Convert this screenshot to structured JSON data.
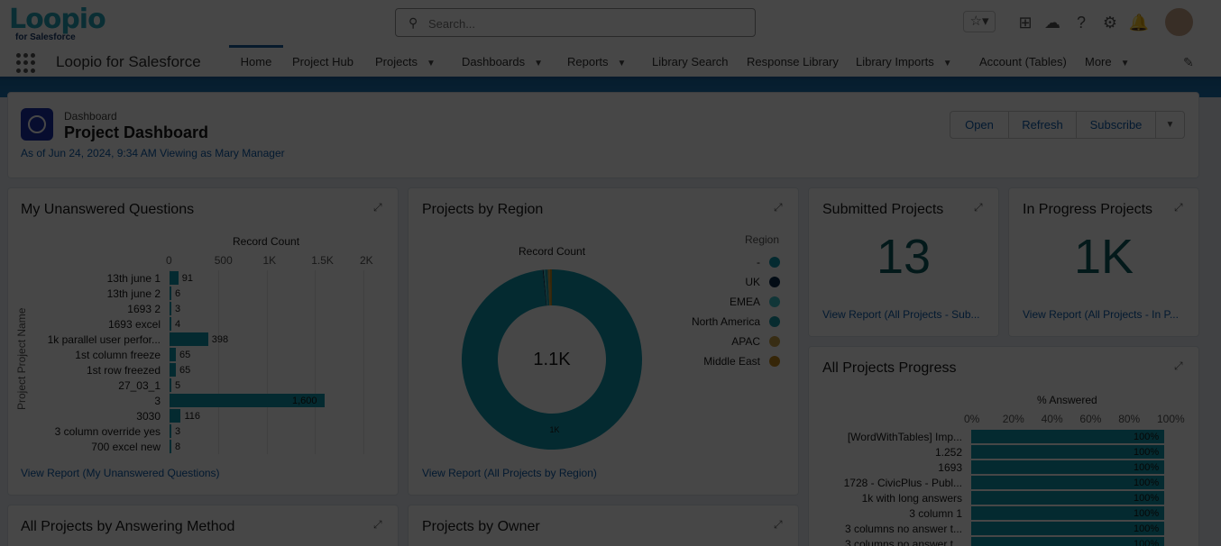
{
  "header": {
    "logo": "Loopio",
    "logo_sub": "for Salesforce",
    "search_placeholder": "Search..."
  },
  "nav": {
    "app_name": "Loopio for Salesforce",
    "items": [
      {
        "label": "Home"
      },
      {
        "label": "Project Hub"
      },
      {
        "label": "Projects"
      },
      {
        "label": "Dashboards"
      },
      {
        "label": "Reports"
      },
      {
        "label": "Library Search"
      },
      {
        "label": "Response Library"
      },
      {
        "label": "Library Imports"
      },
      {
        "label": "Account (Tables)"
      },
      {
        "label": "More"
      }
    ]
  },
  "dashboard": {
    "type": "Dashboard",
    "title": "Project Dashboard",
    "subtitle": "As of Jun 24, 2024, 9:34 AM Viewing as Mary Manager",
    "buttons": {
      "open": "Open",
      "refresh": "Refresh",
      "subscribe": "Subscribe"
    }
  },
  "widgets": {
    "unanswered": {
      "title": "My Unanswered Questions",
      "axis_title": "Record Count",
      "y_title": "Project  Project Name",
      "link": "View Report (My Unanswered Questions)"
    },
    "region": {
      "title": "Projects by Region",
      "chart_title": "Record Count",
      "center": "1.1K",
      "slice_label": "1K",
      "legend_title": "Region",
      "link": "View Report (All Projects by Region)"
    },
    "submitted": {
      "title": "Submitted Projects",
      "value": "13",
      "link": "View Report (All Projects - Sub..."
    },
    "inprogress": {
      "title": "In Progress Projects",
      "value": "1K",
      "link": "View Report (All Projects - In P..."
    },
    "progress": {
      "title": "All Projects Progress",
      "axis_title": "% Answered"
    },
    "answering": {
      "title": "All Projects by Answering Method"
    },
    "owner": {
      "title": "Projects by Owner"
    }
  },
  "chart_data": [
    {
      "type": "bar",
      "title": "My Unanswered Questions",
      "xlabel": "Record Count",
      "ylabel": "Project  Project Name",
      "xlim": [
        0,
        2000
      ],
      "ticks": [
        "0",
        "500",
        "1K",
        "1.5K",
        "2K"
      ],
      "categories": [
        "13th june 1",
        "13th june 2",
        "1693 2",
        "1693 excel",
        "1k parallel user perfor...",
        "1st column freeze",
        "1st row freezed",
        "27_03_1",
        "3",
        "3030",
        "3 column override yes",
        "700 excel new"
      ],
      "values": [
        91,
        6,
        3,
        4,
        398,
        65,
        65,
        5,
        1600,
        116,
        3,
        8
      ],
      "labels": [
        "91",
        "6",
        "3",
        "4",
        "398",
        "65",
        "65",
        "5",
        "1,600",
        "116",
        "3",
        "8"
      ]
    },
    {
      "type": "pie",
      "title": "Record Count",
      "legend_title": "Region",
      "categories": [
        "-",
        "UK",
        "EMEA",
        "North America",
        "APAC",
        "Middle East"
      ],
      "values": [
        1070,
        2,
        3,
        5,
        4,
        4
      ],
      "colors": [
        "#0f98ad",
        "#0b2c4d",
        "#3fc1c9",
        "#1a9aa8",
        "#c9a24a",
        "#c28a1e"
      ]
    },
    {
      "type": "bar",
      "title": "All Projects Progress",
      "xlabel": "% Answered",
      "xlim": [
        0,
        100
      ],
      "ticks": [
        "0%",
        "20%",
        "40%",
        "60%",
        "80%",
        "100%"
      ],
      "categories": [
        "[WordWithTables] Imp...",
        "1.252",
        "1693",
        "1728 - CivicPlus - Publ...",
        "1k with long answers",
        "3 column 1",
        "3 columns no answer t...",
        "3 columns no answer t..."
      ],
      "values": [
        100,
        100,
        100,
        100,
        100,
        100,
        100,
        100
      ],
      "labels": [
        "100%",
        "100%",
        "100%",
        "100%",
        "100%",
        "100%",
        "100%",
        "100%"
      ]
    }
  ]
}
